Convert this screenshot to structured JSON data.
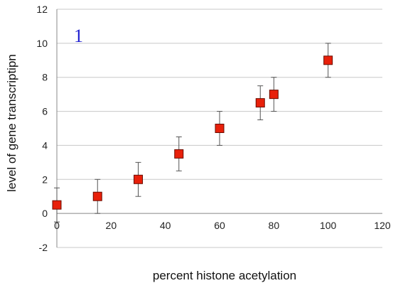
{
  "chart_data": {
    "type": "scatter",
    "xlabel": "percent histone acetylation",
    "ylabel": "level of gene transcriptipn",
    "xlim": [
      0,
      120
    ],
    "ylim": [
      -2,
      12
    ],
    "xticks": [
      0,
      20,
      40,
      60,
      80,
      100,
      120
    ],
    "yticks": [
      -2,
      0,
      2,
      4,
      6,
      8,
      10,
      12
    ],
    "grid": "horizontal",
    "annotation": "1",
    "marker_color": "#e8200a",
    "points": [
      {
        "x": 0,
        "y": 0.5,
        "err": 1
      },
      {
        "x": 15,
        "y": 1,
        "err": 1
      },
      {
        "x": 30,
        "y": 2,
        "err": 1
      },
      {
        "x": 45,
        "y": 3.5,
        "err": 1
      },
      {
        "x": 60,
        "y": 5,
        "err": 1
      },
      {
        "x": 75,
        "y": 6.5,
        "err": 1
      },
      {
        "x": 80,
        "y": 7,
        "err": 1
      },
      {
        "x": 100,
        "y": 9,
        "err": 1
      }
    ]
  }
}
